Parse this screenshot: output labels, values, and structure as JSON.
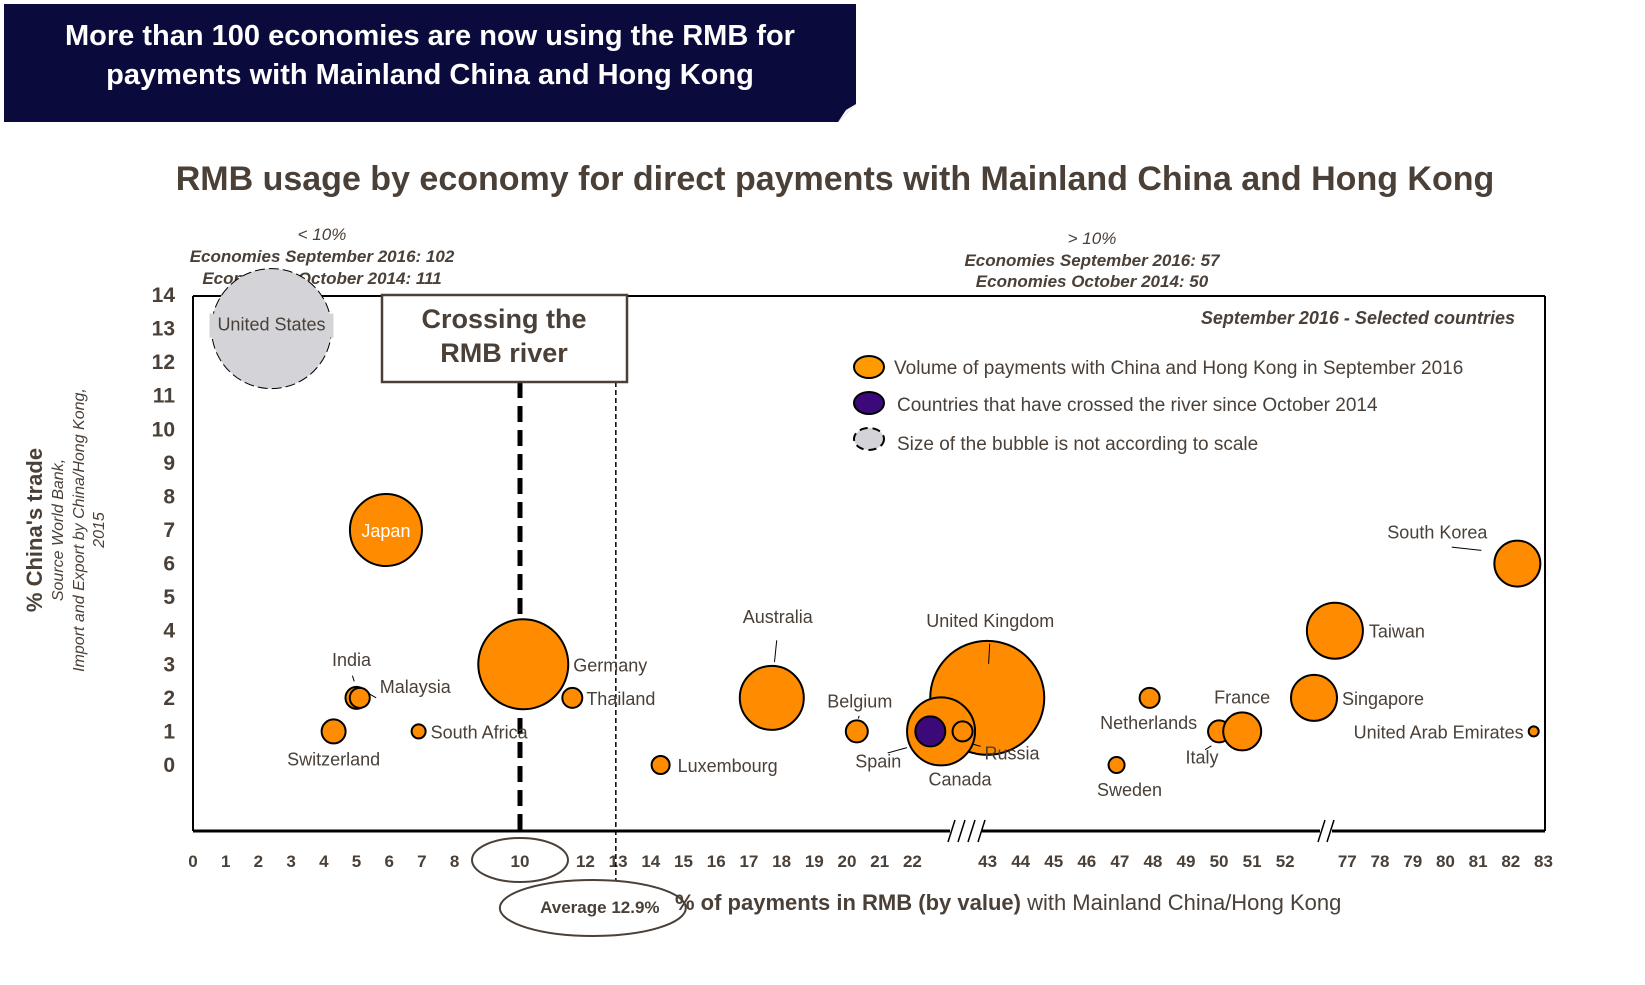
{
  "banner": {
    "line1": "More than 100 economies are now using the RMB for",
    "line2": "payments with Mainland China and Hong Kong"
  },
  "chart_data": {
    "type": "scatter",
    "subtype": "bubble",
    "title": "RMB usage by economy for direct payments with Mainland China and Hong Kong",
    "xlabel_bold": "% of payments in RMB (by value)",
    "xlabel_rest": " with Mainland China/Hong Kong",
    "ylabel": "% China's trade",
    "ylabel_source": [
      "Source World Bank,",
      "Import and Export by China/Hong Kong,",
      "2015"
    ],
    "y_ticks": [
      0,
      1,
      2,
      3,
      4,
      5,
      6,
      7,
      8,
      9,
      10,
      11,
      12,
      13,
      14
    ],
    "ylim": [
      -2,
      14
    ],
    "x_ticks": [
      0,
      1,
      2,
      3,
      4,
      5,
      6,
      7,
      8,
      10,
      12,
      13,
      14,
      15,
      16,
      17,
      18,
      19,
      20,
      21,
      22,
      43,
      44,
      45,
      46,
      47,
      48,
      49,
      50,
      51,
      52,
      77,
      78,
      79,
      80,
      81,
      82,
      83
    ],
    "x_axis_breaks": [
      "22-43",
      "52-77"
    ],
    "left_note": {
      "line1": "< 10%",
      "line2": "Economies September 2016: 102",
      "line3": "Economies October 2014: 111"
    },
    "right_note": {
      "line1": "> 10%",
      "line2": "Economies September 2016: 57",
      "line3": "Economies October 2014: 50"
    },
    "river_box": {
      "line1": "Crossing the",
      "line2": "RMB river"
    },
    "river_x": 10,
    "river_tick_label": "10",
    "average_x": 12.9,
    "average_label": "Average 12.9%",
    "panel_subtitle": "September 2016 - Selected countries",
    "legend": [
      {
        "label": "Volume of payments with China and Hong Kong in September 2016",
        "color": "#ff8c00"
      },
      {
        "label": "Countries that have crossed the river since October 2014",
        "color": "#3c0a78"
      },
      {
        "label": "Size of the bubble is not according to scale",
        "color": "#d4d4d8"
      }
    ],
    "colors": {
      "volume": "#ff8c00",
      "crossed": "#3c0a78",
      "not_to_scale": "#d4d4d8",
      "text": "#4a4038",
      "banner": "#0a0a3c"
    },
    "series": [
      {
        "name": "United States",
        "x": 2.4,
        "y": 13,
        "size": 60,
        "kind": "not_to_scale"
      },
      {
        "name": "Japan",
        "x": 5.9,
        "y": 7,
        "size": 36,
        "kind": "volume"
      },
      {
        "name": "Germany",
        "x": 10.1,
        "y": 3,
        "size": 45,
        "kind": "volume"
      },
      {
        "name": "India",
        "x": 5.0,
        "y": 2,
        "size": 11,
        "kind": "volume"
      },
      {
        "name": "Malaysia",
        "x": 5.1,
        "y": 2,
        "size": 10,
        "kind": "volume"
      },
      {
        "name": "Switzerland",
        "x": 4.3,
        "y": 1,
        "size": 12,
        "kind": "volume"
      },
      {
        "name": "South Africa",
        "x": 6.9,
        "y": 1,
        "size": 7,
        "kind": "volume"
      },
      {
        "name": "Thailand",
        "x": 11.6,
        "y": 2,
        "size": 10,
        "kind": "volume"
      },
      {
        "name": "Luxembourg",
        "x": 14.3,
        "y": 0,
        "size": 9,
        "kind": "volume"
      },
      {
        "name": "Australia",
        "x": 17.7,
        "y": 2,
        "size": 32,
        "kind": "volume"
      },
      {
        "name": "Belgium",
        "x": 20.3,
        "y": 1,
        "size": 11,
        "kind": "volume"
      },
      {
        "name": "United Kingdom",
        "x": 42.9,
        "y": 2,
        "size": 57,
        "kind": "volume"
      },
      {
        "name": "Canada",
        "x": 30,
        "y": 1,
        "size": 34,
        "kind": "volume"
      },
      {
        "name": "Spain",
        "x": 27,
        "y": 1,
        "size": 15,
        "kind": "crossed"
      },
      {
        "name": "Russia",
        "x": 36,
        "y": 1,
        "size": 10,
        "kind": "outline"
      },
      {
        "name": "Netherlands",
        "x": 47.9,
        "y": 2,
        "size": 10,
        "kind": "volume"
      },
      {
        "name": "Sweden",
        "x": 46.9,
        "y": 0,
        "size": 8,
        "kind": "volume"
      },
      {
        "name": "Italy",
        "x": 50.0,
        "y": 1,
        "size": 11,
        "kind": "volume"
      },
      {
        "name": "France",
        "x": 50.7,
        "y": 1,
        "size": 19,
        "kind": "volume"
      },
      {
        "name": "Singapore",
        "x": 63.6,
        "y": 2,
        "size": 23,
        "kind": "volume"
      },
      {
        "name": "Taiwan",
        "x": 72,
        "y": 4,
        "size": 28,
        "kind": "volume"
      },
      {
        "name": "South Korea",
        "x": 82.2,
        "y": 6,
        "size": 23,
        "kind": "volume"
      },
      {
        "name": "United Arab Emirates",
        "x": 82.7,
        "y": 1,
        "size": 5,
        "kind": "volume"
      }
    ]
  }
}
